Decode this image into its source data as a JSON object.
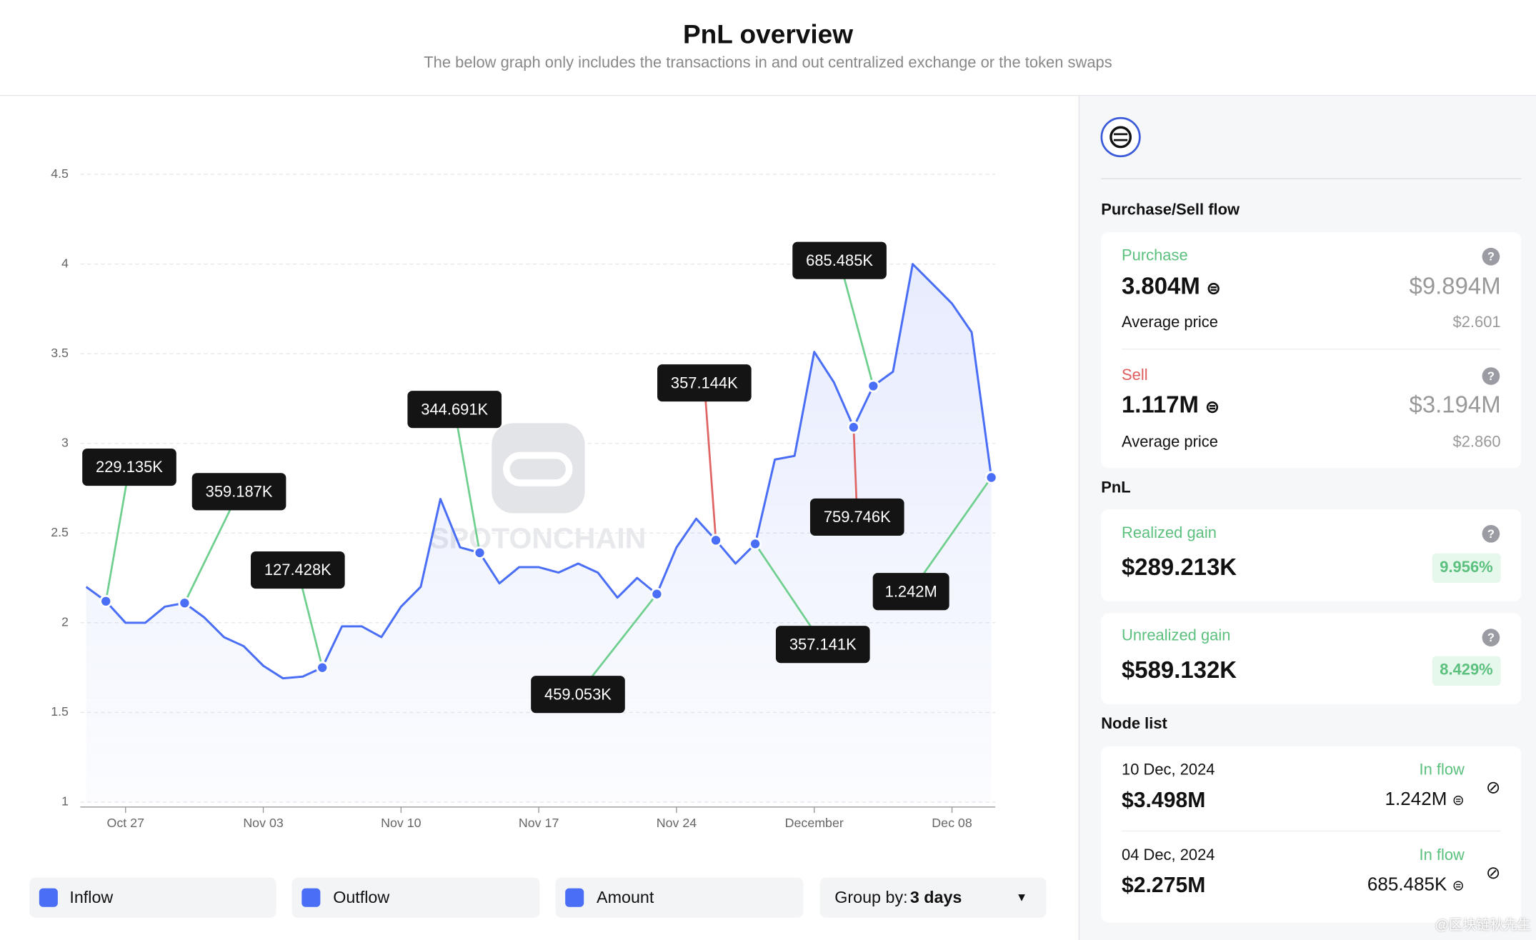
{
  "header": {
    "title": "PnL overview",
    "subtitle": "The below graph only includes the transactions in and out centralized exchange or the token swaps"
  },
  "chart_data": {
    "type": "line",
    "watermark": "SPOTONCHAIN",
    "x": [
      "Oct 25",
      "Oct 26",
      "Oct 27",
      "Oct 28",
      "Oct 29",
      "Oct 30",
      "Oct 31",
      "Nov 01",
      "Nov 02",
      "Nov 03",
      "Nov 04",
      "Nov 05",
      "Nov 06",
      "Nov 07",
      "Nov 08",
      "Nov 09",
      "Nov 10",
      "Nov 11",
      "Nov 12",
      "Nov 13",
      "Nov 14",
      "Nov 15",
      "Nov 16",
      "Nov 17",
      "Nov 18",
      "Nov 19",
      "Nov 20",
      "Nov 21",
      "Nov 22",
      "Nov 23",
      "Nov 24",
      "Nov 25",
      "Nov 26",
      "Nov 27",
      "Nov 28",
      "Nov 29",
      "Nov 30",
      "Dec 01",
      "Dec 02",
      "Dec 03",
      "Dec 04",
      "Dec 05",
      "Dec 06",
      "Dec 07",
      "Dec 08",
      "Dec 09",
      "Dec 10"
    ],
    "series": [
      {
        "name": "Amount",
        "color": "#4a6ef5",
        "values": [
          2.2,
          2.12,
          2.0,
          2.0,
          2.09,
          2.11,
          2.03,
          1.92,
          1.87,
          1.76,
          1.69,
          1.7,
          1.75,
          1.98,
          1.98,
          1.92,
          2.09,
          2.2,
          2.69,
          2.42,
          2.39,
          2.22,
          2.31,
          2.31,
          2.28,
          2.33,
          2.28,
          2.14,
          2.25,
          2.16,
          2.42,
          2.58,
          2.46,
          2.33,
          2.44,
          2.91,
          2.93,
          3.51,
          3.34,
          3.09,
          3.32,
          3.4,
          4.0,
          3.89,
          3.78,
          3.62,
          2.81
        ]
      },
      {
        "name": "Inflow",
        "color": "#6fcf8f",
        "x": [
          "Oct 26",
          "Oct 30",
          "Nov 06",
          "Nov 14",
          "Nov 23",
          "Nov 28",
          "Dec 04",
          "Dec 10"
        ],
        "values": [
          229135,
          359187,
          127428,
          344691,
          459053,
          357141,
          685485,
          1242000
        ],
        "value_labels": [
          "229.135K",
          "359.187K",
          "127.428K",
          "344.691K",
          "459.053K",
          "357.141K",
          "685.485K",
          "1.242M"
        ]
      },
      {
        "name": "Outflow",
        "color": "#e06666",
        "x": [
          "Nov 26",
          "Dec 03"
        ],
        "values": [
          357144,
          759746
        ],
        "value_labels": [
          "357.144K",
          "759.746K"
        ]
      }
    ],
    "ylim": [
      1,
      4.5
    ],
    "yticks": [
      1,
      1.5,
      2,
      2.5,
      3,
      3.5,
      4,
      4.5
    ],
    "xticks": [
      "Oct 27",
      "Nov 03",
      "Nov 10",
      "Nov 17",
      "Nov 24",
      {
        "value": "Dec 01",
        "label": "December"
      },
      "Dec 08"
    ],
    "grid": true
  },
  "controls": {
    "group_by": {
      "label": "Group by:",
      "value": "3 days"
    }
  },
  "sidebar": {
    "flow_title": "Purchase/Sell flow",
    "purchase": {
      "label": "Purchase",
      "amount": "3.804M",
      "usd": "$9.894M",
      "avg_label": "Average price",
      "avg": "$2.601"
    },
    "sell": {
      "label": "Sell",
      "amount": "1.117M",
      "usd": "$3.194M",
      "avg_label": "Average price",
      "avg": "$2.860"
    },
    "pnl_title": "PnL",
    "realized": {
      "label": "Realized gain",
      "value": "$289.213K",
      "pct": "9.956%"
    },
    "unrealized": {
      "label": "Unrealized gain",
      "value": "$589.132K",
      "pct": "8.429%"
    },
    "node_title": "Node list",
    "nodes": [
      {
        "date": "10 Dec, 2024",
        "usd": "$3.498M",
        "flow": "In flow",
        "amount": "1.242M"
      },
      {
        "date": "04 Dec, 2024",
        "usd": "$2.275M",
        "flow": "In flow",
        "amount": "685.485K"
      }
    ]
  },
  "footer": {
    "watermark": "@区块链秋先生"
  }
}
